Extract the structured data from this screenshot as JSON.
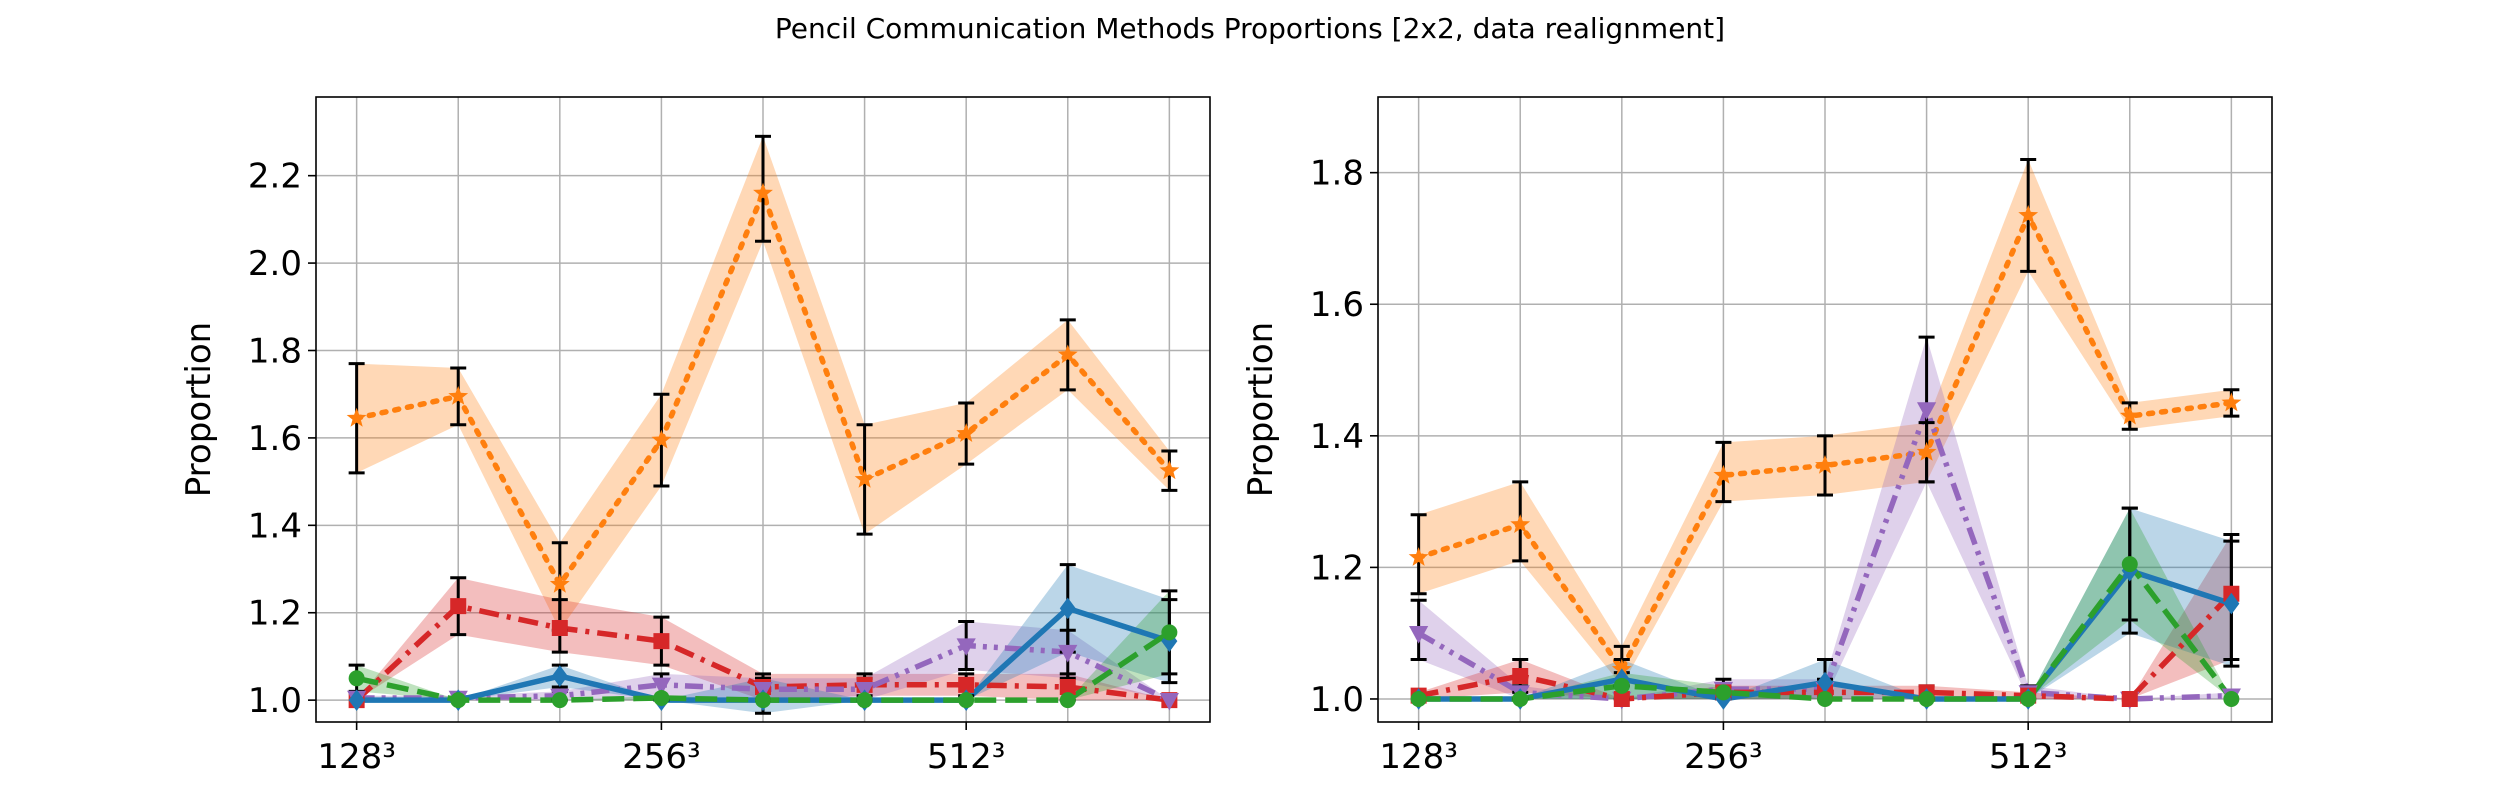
{
  "title": "Pencil Communication Methods Proportions [2x2, data realignment]",
  "chart_data": [
    {
      "type": "line",
      "title": "",
      "xlabel": "",
      "ylabel": "Proportion",
      "x": [
        0,
        1,
        2,
        3,
        4,
        5,
        6,
        7,
        8
      ],
      "xtick_positions": [
        0,
        3,
        6
      ],
      "xtick_labels": [
        "128³",
        "256³",
        "512³"
      ],
      "ylim": [
        0.95,
        2.38
      ],
      "yticks": [
        1.0,
        1.2,
        1.4,
        1.6,
        1.8,
        2.0,
        2.2
      ],
      "ytick_labels": [
        "1.0",
        "1.2",
        "1.4",
        "1.6",
        "1.8",
        "2.0",
        "2.2"
      ],
      "grid": true,
      "series": [
        {
          "color": "#ff7f0e",
          "linestyle": "dotted",
          "marker": "star",
          "values": [
            1.645,
            1.695,
            1.265,
            1.595,
            2.16,
            1.505,
            1.61,
            1.79,
            1.525
          ],
          "band_low": [
            1.52,
            1.63,
            1.16,
            1.49,
            2.05,
            1.38,
            1.54,
            1.71,
            1.48
          ],
          "band_high": [
            1.77,
            1.76,
            1.36,
            1.7,
            2.29,
            1.63,
            1.68,
            1.87,
            1.57
          ],
          "errorbars": true
        },
        {
          "color": "#d62728",
          "linestyle": "dashdot",
          "marker": "square",
          "values": [
            1.0,
            1.215,
            1.165,
            1.135,
            1.03,
            1.035,
            1.035,
            1.03,
            1.0
          ],
          "band_low": [
            1.0,
            1.15,
            1.11,
            1.08,
            1.0,
            1.01,
            1.01,
            1.0,
            1.0
          ],
          "band_high": [
            1.0,
            1.28,
            1.23,
            1.19,
            1.06,
            1.06,
            1.06,
            1.06,
            1.0
          ],
          "errorbars": true
        },
        {
          "color": "#9467bd",
          "linestyle": "dashdotdot",
          "marker": "triangle-down",
          "values": [
            1.005,
            1.005,
            1.01,
            1.035,
            1.025,
            1.025,
            1.125,
            1.11,
            1.0
          ],
          "band_low": [
            1.0,
            1.0,
            1.0,
            1.0,
            1.0,
            1.0,
            1.07,
            1.05,
            1.0
          ],
          "band_high": [
            1.01,
            1.01,
            1.02,
            1.06,
            1.05,
            1.05,
            1.18,
            1.16,
            1.0
          ],
          "errorbars": true
        },
        {
          "color": "#1f77b4",
          "linestyle": "solid",
          "marker": "diamond",
          "values": [
            1.0,
            1.0,
            1.055,
            1.0,
            1.0,
            1.0,
            1.0,
            1.21,
            1.135
          ],
          "band_low": [
            1.0,
            1.0,
            1.03,
            1.0,
            0.97,
            1.0,
            1.0,
            1.11,
            1.04
          ],
          "band_high": [
            1.0,
            1.0,
            1.08,
            1.0,
            1.05,
            1.0,
            1.0,
            1.31,
            1.23
          ],
          "errorbars": true
        },
        {
          "color": "#2ca02c",
          "linestyle": "dashed",
          "marker": "circle",
          "values": [
            1.05,
            1.0,
            1.0,
            1.005,
            1.0,
            1.0,
            1.0,
            1.0,
            1.155
          ],
          "band_low": [
            1.02,
            1.0,
            1.0,
            1.0,
            1.0,
            1.0,
            1.0,
            1.0,
            1.06
          ],
          "band_high": [
            1.08,
            1.0,
            1.0,
            1.01,
            1.0,
            1.0,
            1.0,
            1.0,
            1.25
          ],
          "errorbars": true
        }
      ]
    },
    {
      "type": "line",
      "title": "",
      "xlabel": "",
      "ylabel": "Proportion",
      "x": [
        0,
        1,
        2,
        3,
        4,
        5,
        6,
        7,
        8
      ],
      "xtick_positions": [
        0,
        3,
        6
      ],
      "xtick_labels": [
        "128³",
        "256³",
        "512³"
      ],
      "ylim": [
        0.965,
        1.915
      ],
      "yticks": [
        1.0,
        1.2,
        1.4,
        1.6,
        1.8
      ],
      "ytick_labels": [
        "1.0",
        "1.2",
        "1.4",
        "1.6",
        "1.8"
      ],
      "grid": true,
      "series": [
        {
          "color": "#ff7f0e",
          "linestyle": "dotted",
          "marker": "star",
          "values": [
            1.215,
            1.265,
            1.045,
            1.34,
            1.355,
            1.375,
            1.735,
            1.43,
            1.45
          ],
          "band_low": [
            1.16,
            1.21,
            1.02,
            1.3,
            1.31,
            1.33,
            1.65,
            1.41,
            1.43
          ],
          "band_high": [
            1.28,
            1.33,
            1.08,
            1.39,
            1.4,
            1.42,
            1.82,
            1.45,
            1.47
          ],
          "errorbars": true
        },
        {
          "color": "#9467bd",
          "linestyle": "dashdotdot",
          "marker": "triangle-down",
          "values": [
            1.1,
            1.01,
            1.0,
            1.015,
            1.015,
            1.44,
            1.01,
            1.0,
            1.005
          ],
          "band_low": [
            1.06,
            1.0,
            1.0,
            1.0,
            1.0,
            1.33,
            1.0,
            1.0,
            1.0
          ],
          "band_high": [
            1.15,
            1.02,
            1.0,
            1.03,
            1.03,
            1.55,
            1.02,
            1.0,
            1.01
          ],
          "errorbars": true
        },
        {
          "color": "#d62728",
          "linestyle": "dashdot",
          "marker": "square",
          "values": [
            1.005,
            1.035,
            1.0,
            1.01,
            1.01,
            1.01,
            1.005,
            1.0,
            1.16
          ],
          "band_low": [
            1.0,
            1.01,
            1.0,
            1.0,
            1.0,
            1.0,
            1.0,
            1.0,
            1.06
          ],
          "band_high": [
            1.01,
            1.06,
            1.0,
            1.02,
            1.02,
            1.02,
            1.01,
            1.0,
            1.25
          ],
          "errorbars": true
        },
        {
          "color": "#1f77b4",
          "linestyle": "solid",
          "marker": "diamond",
          "values": [
            1.0,
            1.0,
            1.03,
            1.0,
            1.025,
            1.0,
            1.0,
            1.195,
            1.145
          ],
          "band_low": [
            1.0,
            1.0,
            1.0,
            1.0,
            1.0,
            1.0,
            1.0,
            1.1,
            1.05
          ],
          "band_high": [
            1.0,
            1.0,
            1.06,
            1.0,
            1.06,
            1.0,
            1.0,
            1.29,
            1.24
          ],
          "errorbars": true
        },
        {
          "color": "#2ca02c",
          "linestyle": "dashed",
          "marker": "circle",
          "values": [
            1.0,
            1.0,
            1.02,
            1.01,
            1.0,
            1.0,
            1.0,
            1.205,
            1.0
          ],
          "band_low": [
            1.0,
            1.0,
            1.0,
            1.0,
            1.0,
            1.0,
            1.0,
            1.12,
            1.0
          ],
          "band_high": [
            1.0,
            1.0,
            1.04,
            1.02,
            1.0,
            1.0,
            1.0,
            1.29,
            1.0
          ],
          "errorbars": true
        }
      ]
    }
  ]
}
